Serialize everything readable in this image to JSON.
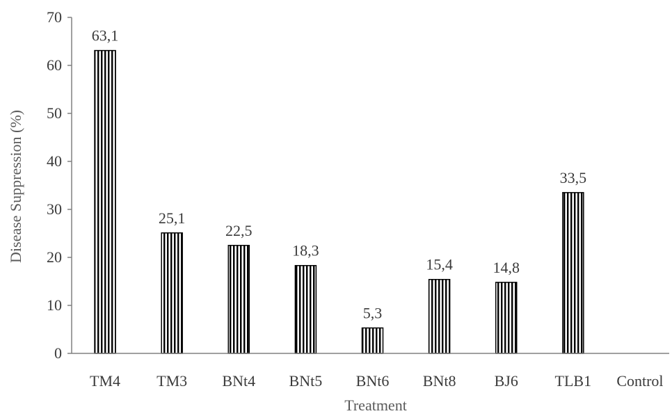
{
  "chart_data": {
    "type": "bar",
    "title": "",
    "xlabel": "Treatment",
    "ylabel": "Disease Suppression (%)",
    "ylim": [
      0,
      70
    ],
    "yticks": [
      0,
      10,
      20,
      30,
      40,
      50,
      60,
      70
    ],
    "categories": [
      "TM4",
      "TM3",
      "BNt4",
      "BNt5",
      "BNt6",
      "BNt8",
      "BJ6",
      "TLB1",
      "Control"
    ],
    "values": [
      63.1,
      25.1,
      22.5,
      18.3,
      5.3,
      15.4,
      14.8,
      33.5,
      0
    ],
    "data_labels": [
      "63,1",
      "25,1",
      "22,5",
      "18,3",
      "5,3",
      "15,4",
      "14,8",
      "33,5",
      ""
    ],
    "bar_fill": "vertical-stripes",
    "bar_color": "#000000",
    "grid": false,
    "legend": "none"
  }
}
